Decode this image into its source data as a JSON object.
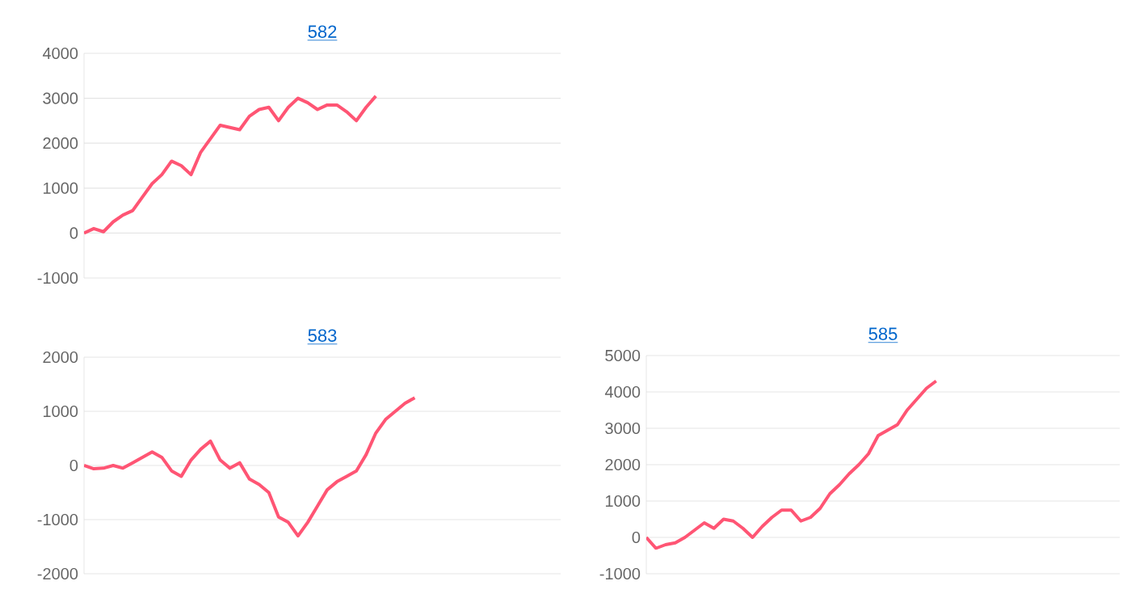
{
  "chart_data": [
    {
      "type": "line",
      "title": "582",
      "categories": [
        null,
        null,
        null,
        null,
        null,
        null,
        null,
        null,
        null,
        null,
        null,
        null,
        null,
        null,
        null,
        null,
        null,
        null,
        null,
        null,
        null,
        null,
        null,
        null,
        null,
        null,
        null,
        null,
        null,
        null,
        null,
        null,
        null,
        null,
        null,
        null,
        null,
        null,
        null,
        null,
        null,
        null,
        null,
        null,
        null,
        null,
        null,
        null,
        null,
        null
      ],
      "series": [
        {
          "color": "#ff5574",
          "values": [
            0,
            100,
            30,
            250,
            400,
            500,
            800,
            1100,
            1300,
            1600,
            1500,
            1300,
            1800,
            2100,
            2400,
            2350,
            2300,
            2600,
            2750,
            2800,
            2500,
            2800,
            3000,
            2900,
            2750,
            2850,
            2850,
            2700,
            2500,
            2800,
            3050,
            null,
            null,
            null,
            null,
            null,
            null,
            null,
            null,
            null,
            null,
            null,
            null,
            null,
            null,
            null,
            null,
            null,
            null,
            null
          ]
        }
      ],
      "ylim": [
        -1000,
        4000
      ],
      "yticks": [
        -1000,
        0,
        1000,
        2000,
        3000,
        4000
      ],
      "grid": "y",
      "tick_labels": "y"
    },
    {
      "type": "line",
      "title": "583",
      "categories": [
        null,
        null,
        null,
        null,
        null,
        null,
        null,
        null,
        null,
        null,
        null,
        null,
        null,
        null,
        null,
        null,
        null,
        null,
        null,
        null,
        null,
        null,
        null,
        null,
        null,
        null,
        null,
        null,
        null,
        null,
        null,
        null,
        null,
        null,
        null,
        null,
        null,
        null,
        null,
        null,
        null,
        null,
        null,
        null,
        null,
        null,
        null,
        null,
        null,
        null
      ],
      "series": [
        {
          "color": "#ff5574",
          "values": [
            0,
            -60,
            -50,
            0,
            -50,
            50,
            150,
            250,
            150,
            -100,
            -200,
            100,
            300,
            450,
            100,
            -50,
            50,
            -250,
            -350,
            -500,
            -950,
            -1050,
            -1300,
            -1050,
            -750,
            -450,
            -300,
            -200,
            -100,
            200,
            600,
            850,
            1000,
            1150,
            1250,
            null,
            null,
            null,
            null,
            null,
            null,
            null,
            null,
            null,
            null,
            null,
            null,
            null,
            null,
            null
          ]
        }
      ],
      "ylim": [
        -2000,
        2000
      ],
      "yticks": [
        -2000,
        -1000,
        0,
        1000,
        2000
      ],
      "grid": "y",
      "tick_labels": "y"
    },
    {
      "type": "line",
      "title": "585",
      "categories": [
        null,
        null,
        null,
        null,
        null,
        null,
        null,
        null,
        null,
        null,
        null,
        null,
        null,
        null,
        null,
        null,
        null,
        null,
        null,
        null,
        null,
        null,
        null,
        null,
        null,
        null,
        null,
        null,
        null,
        null,
        null,
        null,
        null,
        null,
        null,
        null,
        null,
        null,
        null,
        null,
        null,
        null,
        null,
        null,
        null,
        null,
        null,
        null,
        null,
        null
      ],
      "series": [
        {
          "color": "#ff5574",
          "values": [
            0,
            -300,
            -200,
            -150,
            0,
            200,
            400,
            250,
            500,
            450,
            250,
            0,
            300,
            550,
            750,
            750,
            450,
            550,
            800,
            1200,
            1450,
            1750,
            2000,
            2300,
            2800,
            2950,
            3100,
            3500,
            3800,
            4100,
            4300,
            null,
            null,
            null,
            null,
            null,
            null,
            null,
            null,
            null,
            null,
            null,
            null,
            null,
            null,
            null,
            null,
            null,
            null,
            null
          ]
        }
      ],
      "ylim": [
        -1000,
        5000
      ],
      "yticks": [
        -1000,
        0,
        1000,
        2000,
        3000,
        4000,
        5000
      ],
      "grid": "y",
      "tick_labels": "y"
    }
  ]
}
